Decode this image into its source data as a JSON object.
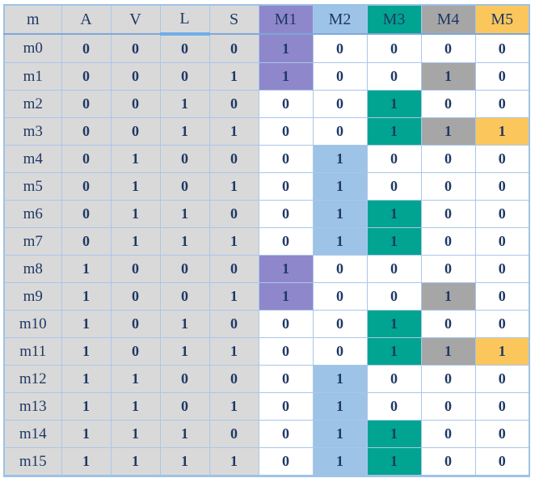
{
  "colors": {
    "text": "#1f3864",
    "input_bg": "#d9d9d9",
    "grid_border": "#a9c7e9",
    "outer_border": "#9dc3e6",
    "header_separator": "#7da7d9",
    "header_underline_highlight": "#6fade8",
    "purple": "#8f87cb",
    "blue": "#9dc3e6",
    "teal": "#00a491",
    "gray": "#a6a6a6",
    "yellow": "#fbc75c"
  },
  "table": {
    "columns": [
      {
        "key": "m",
        "label": "m",
        "group": "label",
        "header_bg": "#d9d9d9"
      },
      {
        "key": "A",
        "label": "A",
        "group": "input",
        "header_bg": "#d9d9d9"
      },
      {
        "key": "V",
        "label": "V",
        "group": "input",
        "header_bg": "#d9d9d9"
      },
      {
        "key": "L",
        "label": "L",
        "group": "input",
        "header_bg": "#d9d9d9",
        "header_underline": true
      },
      {
        "key": "S",
        "label": "S",
        "group": "input",
        "header_bg": "#d9d9d9"
      },
      {
        "key": "M1",
        "label": "M1",
        "group": "output",
        "header_bg": "#8f87cb",
        "highlight": "#8f87cb"
      },
      {
        "key": "M2",
        "label": "M2",
        "group": "output",
        "header_bg": "#9dc3e6",
        "highlight": "#9dc3e6"
      },
      {
        "key": "M3",
        "label": "M3",
        "group": "output",
        "header_bg": "#00a491",
        "highlight": "#00a491"
      },
      {
        "key": "M4",
        "label": "M4",
        "group": "output",
        "header_bg": "#a6a6a6",
        "highlight": "#a6a6a6"
      },
      {
        "key": "M5",
        "label": "M5",
        "group": "output",
        "header_bg": "#fbc75c",
        "highlight": "#fbc75c"
      }
    ],
    "rows": [
      {
        "m": "m0",
        "A": 0,
        "V": 0,
        "L": 0,
        "S": 0,
        "M1": 1,
        "M2": 0,
        "M3": 0,
        "M4": 0,
        "M5": 0
      },
      {
        "m": "m1",
        "A": 0,
        "V": 0,
        "L": 0,
        "S": 1,
        "M1": 1,
        "M2": 0,
        "M3": 0,
        "M4": 1,
        "M5": 0
      },
      {
        "m": "m2",
        "A": 0,
        "V": 0,
        "L": 1,
        "S": 0,
        "M1": 0,
        "M2": 0,
        "M3": 1,
        "M4": 0,
        "M5": 0
      },
      {
        "m": "m3",
        "A": 0,
        "V": 0,
        "L": 1,
        "S": 1,
        "M1": 0,
        "M2": 0,
        "M3": 1,
        "M4": 1,
        "M5": 1
      },
      {
        "m": "m4",
        "A": 0,
        "V": 1,
        "L": 0,
        "S": 0,
        "M1": 0,
        "M2": 1,
        "M3": 0,
        "M4": 0,
        "M5": 0
      },
      {
        "m": "m5",
        "A": 0,
        "V": 1,
        "L": 0,
        "S": 1,
        "M1": 0,
        "M2": 1,
        "M3": 0,
        "M4": 0,
        "M5": 0
      },
      {
        "m": "m6",
        "A": 0,
        "V": 1,
        "L": 1,
        "S": 0,
        "M1": 0,
        "M2": 1,
        "M3": 1,
        "M4": 0,
        "M5": 0
      },
      {
        "m": "m7",
        "A": 0,
        "V": 1,
        "L": 1,
        "S": 1,
        "M1": 0,
        "M2": 1,
        "M3": 1,
        "M4": 0,
        "M5": 0
      },
      {
        "m": "m8",
        "A": 1,
        "V": 0,
        "L": 0,
        "S": 0,
        "M1": 1,
        "M2": 0,
        "M3": 0,
        "M4": 0,
        "M5": 0
      },
      {
        "m": "m9",
        "A": 1,
        "V": 0,
        "L": 0,
        "S": 1,
        "M1": 1,
        "M2": 0,
        "M3": 0,
        "M4": 1,
        "M5": 0
      },
      {
        "m": "m10",
        "A": 1,
        "V": 0,
        "L": 1,
        "S": 0,
        "M1": 0,
        "M2": 0,
        "M3": 1,
        "M4": 0,
        "M5": 0
      },
      {
        "m": "m11",
        "A": 1,
        "V": 0,
        "L": 1,
        "S": 1,
        "M1": 0,
        "M2": 0,
        "M3": 1,
        "M4": 1,
        "M5": 1
      },
      {
        "m": "m12",
        "A": 1,
        "V": 1,
        "L": 0,
        "S": 0,
        "M1": 0,
        "M2": 1,
        "M3": 0,
        "M4": 0,
        "M5": 0
      },
      {
        "m": "m13",
        "A": 1,
        "V": 1,
        "L": 0,
        "S": 1,
        "M1": 0,
        "M2": 1,
        "M3": 0,
        "M4": 0,
        "M5": 0
      },
      {
        "m": "m14",
        "A": 1,
        "V": 1,
        "L": 1,
        "S": 0,
        "M1": 0,
        "M2": 1,
        "M3": 1,
        "M4": 0,
        "M5": 0
      },
      {
        "m": "m15",
        "A": 1,
        "V": 1,
        "L": 1,
        "S": 1,
        "M1": 0,
        "M2": 1,
        "M3": 1,
        "M4": 0,
        "M5": 0
      }
    ]
  }
}
